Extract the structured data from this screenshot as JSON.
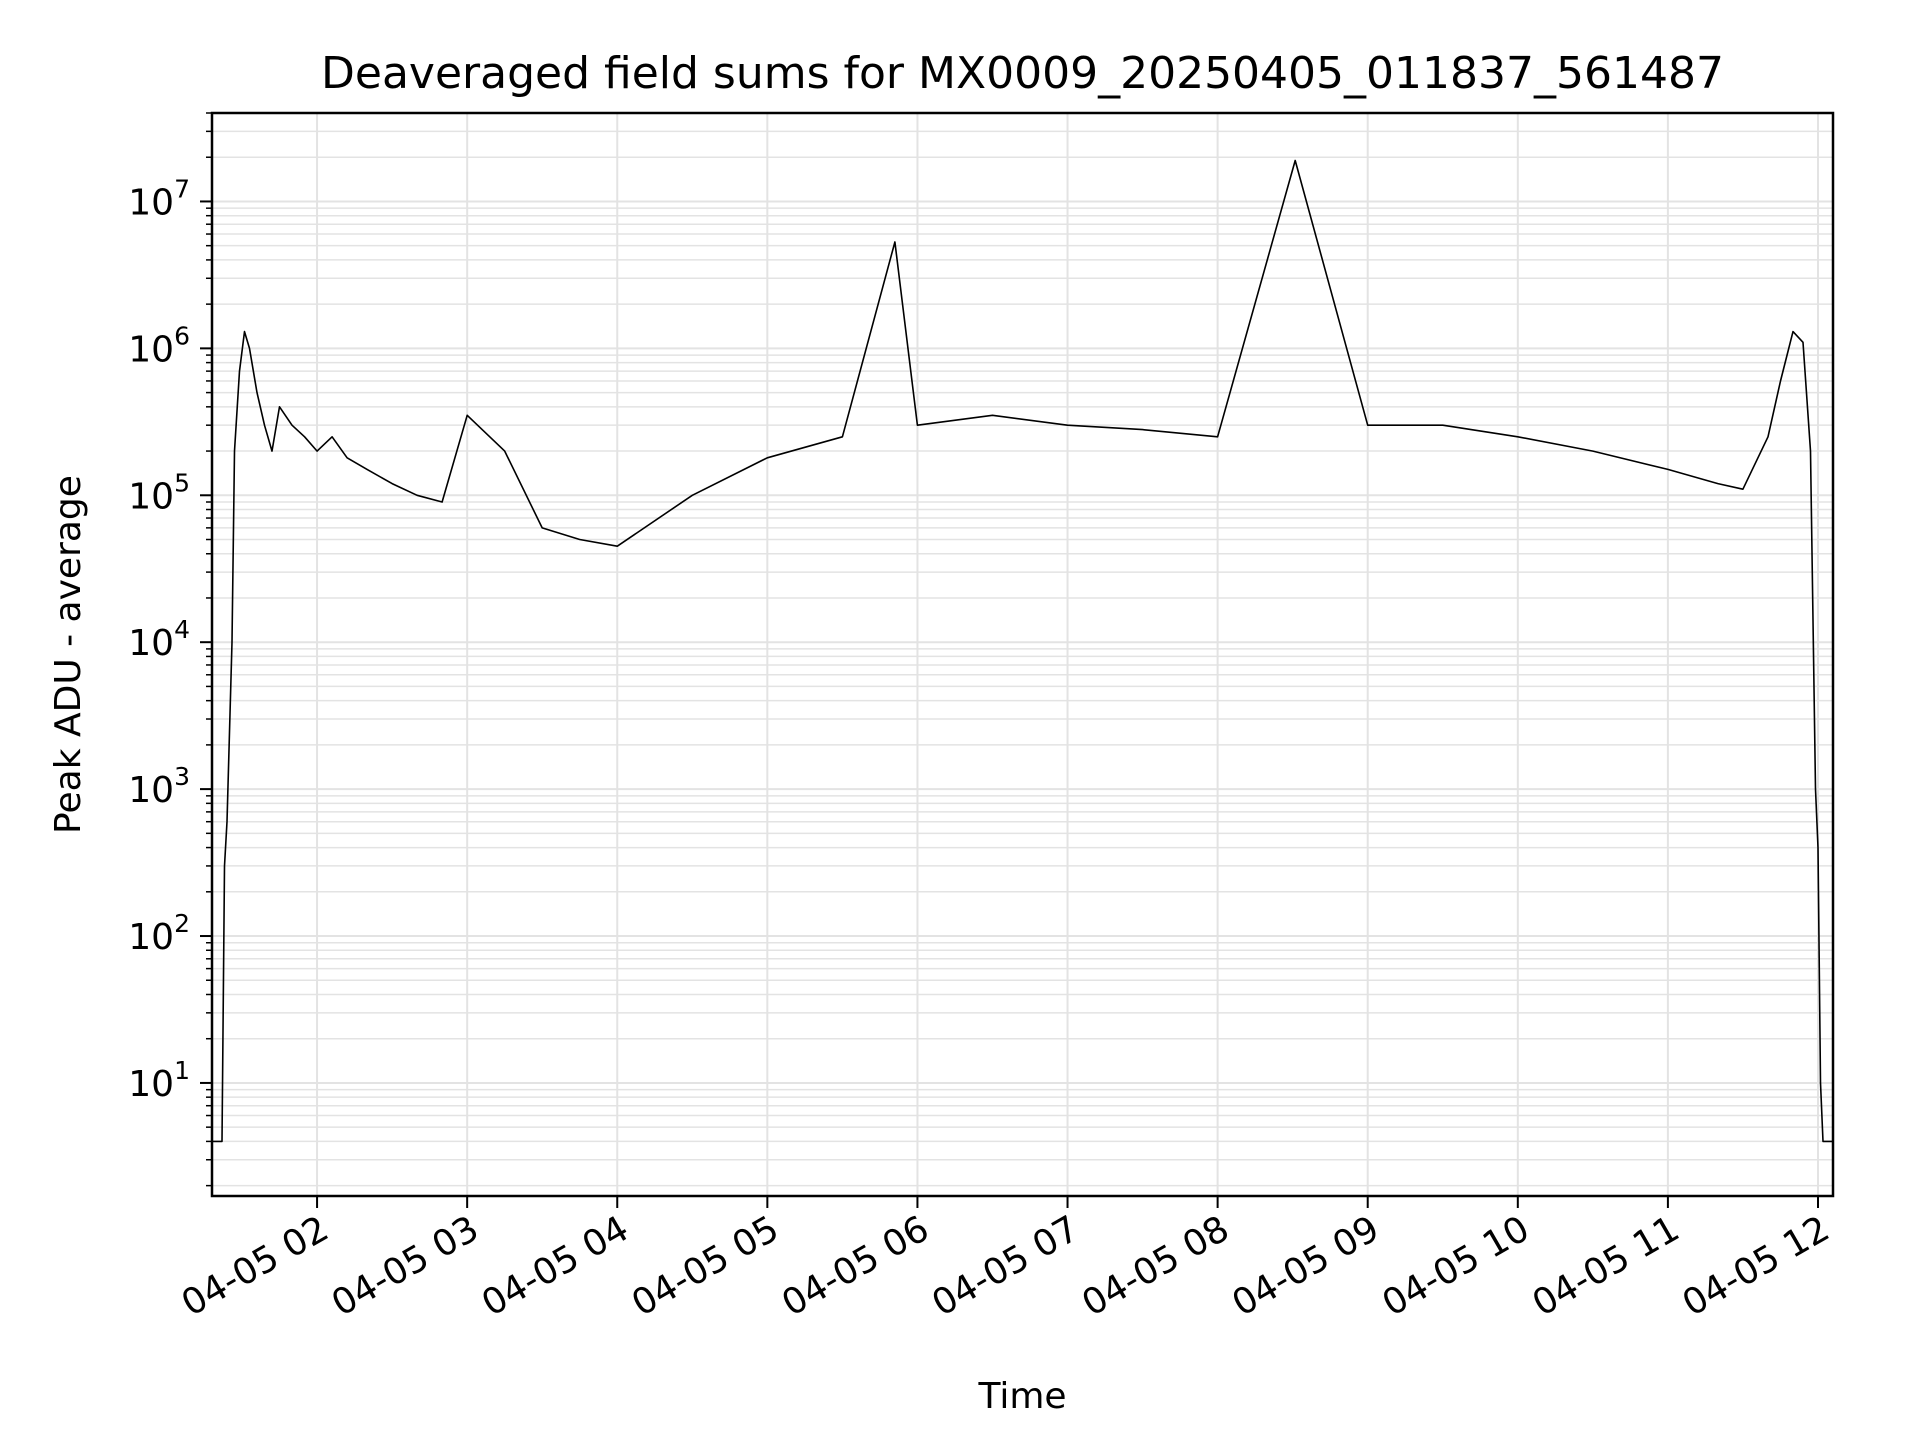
{
  "chart_data": {
    "type": "line",
    "title": "Deaveraged field sums for MX0009_20250405_011837_561487",
    "xlabel": "Time",
    "ylabel": "Peak ADU - average",
    "yscale": "log",
    "ylim": [
      1.7,
      40000000
    ],
    "xlim": [
      "2025-04-05 01:18",
      "2025-04-05 12:06"
    ],
    "grid": true,
    "line_color": "#000000",
    "grid_color": "#e3e3e3",
    "x_ticks": [
      {
        "value": "2025-04-05 02:00",
        "label": "04-05 02"
      },
      {
        "value": "2025-04-05 03:00",
        "label": "04-05 03"
      },
      {
        "value": "2025-04-05 04:00",
        "label": "04-05 04"
      },
      {
        "value": "2025-04-05 05:00",
        "label": "04-05 05"
      },
      {
        "value": "2025-04-05 06:00",
        "label": "04-05 06"
      },
      {
        "value": "2025-04-05 07:00",
        "label": "04-05 07"
      },
      {
        "value": "2025-04-05 08:00",
        "label": "04-05 08"
      },
      {
        "value": "2025-04-05 09:00",
        "label": "04-05 09"
      },
      {
        "value": "2025-04-05 10:00",
        "label": "04-05 10"
      },
      {
        "value": "2025-04-05 11:00",
        "label": "04-05 11"
      },
      {
        "value": "2025-04-05 12:00",
        "label": "04-05 12"
      }
    ],
    "y_ticks": [
      {
        "value": 10,
        "base": "10",
        "exp": "1"
      },
      {
        "value": 100,
        "base": "10",
        "exp": "2"
      },
      {
        "value": 1000,
        "base": "10",
        "exp": "3"
      },
      {
        "value": 10000,
        "base": "10",
        "exp": "4"
      },
      {
        "value": 100000,
        "base": "10",
        "exp": "5"
      },
      {
        "value": 1000000,
        "base": "10",
        "exp": "6"
      },
      {
        "value": 10000000,
        "base": "10",
        "exp": "7"
      }
    ],
    "series": [
      {
        "x": [
          "2025-04-05 01:18",
          "2025-04-05 01:22",
          "2025-04-05 01:23",
          "2025-04-05 01:24",
          "2025-04-05 01:26",
          "2025-04-05 01:27",
          "2025-04-05 01:29",
          "2025-04-05 01:31",
          "2025-04-05 01:33",
          "2025-04-05 01:36",
          "2025-04-05 01:39",
          "2025-04-05 01:42",
          "2025-04-05 01:45",
          "2025-04-05 01:50",
          "2025-04-05 01:55",
          "2025-04-05 02:00",
          "2025-04-05 02:06",
          "2025-04-05 02:12",
          "2025-04-05 02:20",
          "2025-04-05 02:30",
          "2025-04-05 02:40",
          "2025-04-05 02:50",
          "2025-04-05 03:00",
          "2025-04-05 03:15",
          "2025-04-05 03:30",
          "2025-04-05 03:45",
          "2025-04-05 04:00",
          "2025-04-05 04:30",
          "2025-04-05 05:00",
          "2025-04-05 05:30",
          "2025-04-05 05:51",
          "2025-04-05 06:00",
          "2025-04-05 06:30",
          "2025-04-05 07:00",
          "2025-04-05 07:30",
          "2025-04-05 08:00",
          "2025-04-05 08:31",
          "2025-04-05 09:00",
          "2025-04-05 09:30",
          "2025-04-05 10:00",
          "2025-04-05 10:30",
          "2025-04-05 11:00",
          "2025-04-05 11:20",
          "2025-04-05 11:30",
          "2025-04-05 11:40",
          "2025-04-05 11:45",
          "2025-04-05 11:50",
          "2025-04-05 11:54",
          "2025-04-05 11:57",
          "2025-04-05 11:59",
          "2025-04-05 12:00",
          "2025-04-05 12:01",
          "2025-04-05 12:02",
          "2025-04-05 12:03",
          "2025-04-05 12:06"
        ],
        "values": [
          4,
          4,
          300,
          600,
          10000,
          200000,
          700000,
          1300000,
          1000000,
          500000,
          300000,
          200000,
          400000,
          300000,
          250000,
          200000,
          250000,
          180000,
          150000,
          120000,
          100000,
          90000,
          350000,
          200000,
          60000,
          50000,
          45000,
          100000,
          180000,
          250000,
          5300000,
          300000,
          350000,
          300000,
          280000,
          250000,
          19000000,
          300000,
          300000,
          250000,
          200000,
          150000,
          120000,
          110000,
          250000,
          600000,
          1300000,
          1100000,
          200000,
          1000,
          400,
          10,
          4,
          4,
          4
        ]
      }
    ]
  }
}
